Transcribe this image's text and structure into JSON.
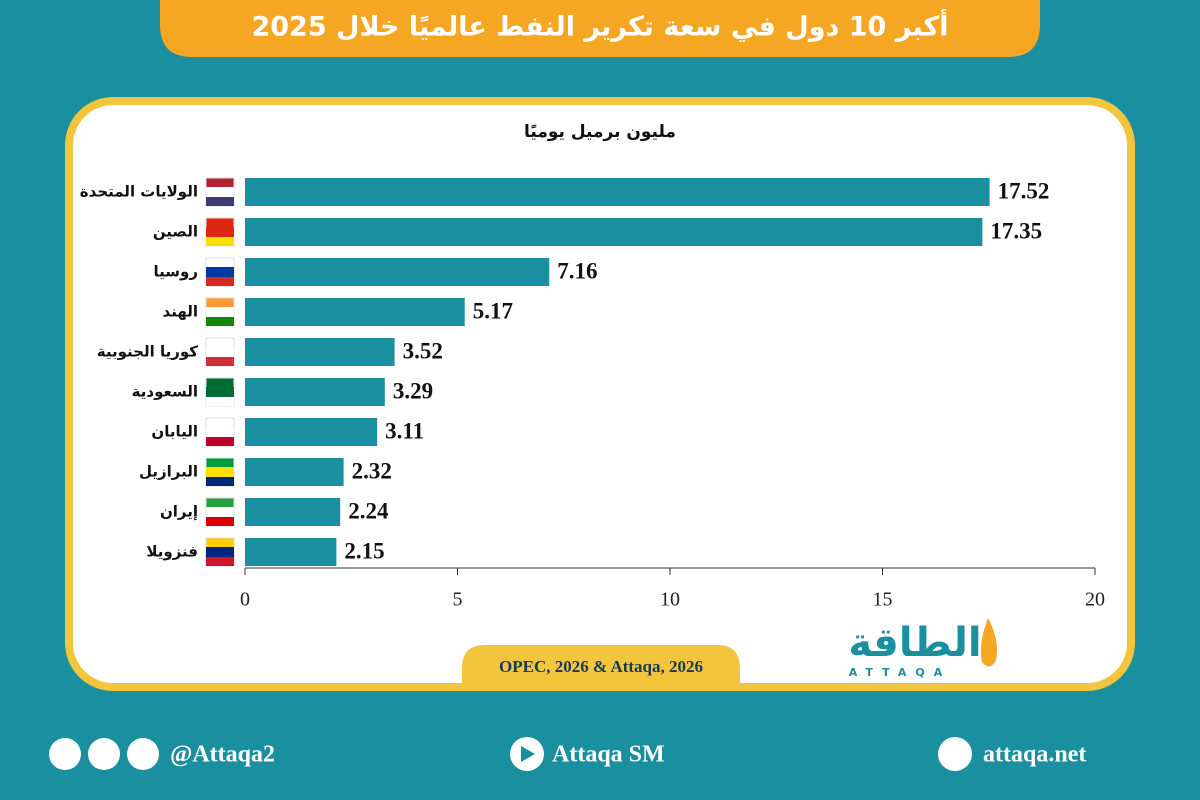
{
  "chart_data": {
    "type": "bar",
    "orientation": "horizontal",
    "title": "أكبر 10 دول في سعة تكرير النفط عالميًا خلال 2025",
    "x_label": "مليون برميل يوميًا",
    "categories": [
      "الولايات المتحدة",
      "الصين",
      "روسيا",
      "الهند",
      "كوريا الجنوبية",
      "السعودية",
      "اليابان",
      "البرازيل",
      "إيران",
      "فنزويلا"
    ],
    "values": [
      17.52,
      17.35,
      7.16,
      5.17,
      3.52,
      3.29,
      3.11,
      2.32,
      2.24,
      2.15
    ],
    "color": "#1a8fa0",
    "xlim": [
      0,
      20
    ],
    "xticks": [
      0,
      5,
      10,
      15,
      20
    ],
    "grid": false
  },
  "source": "OPEC, 2026 & Attaqa, 2026",
  "logo": {
    "text": "الطاقة",
    "subtitle": "ATTAQA"
  },
  "footer": {
    "social": "@Attaqa2",
    "youtube": "Attaqa SM",
    "website": "attaqa.net"
  }
}
